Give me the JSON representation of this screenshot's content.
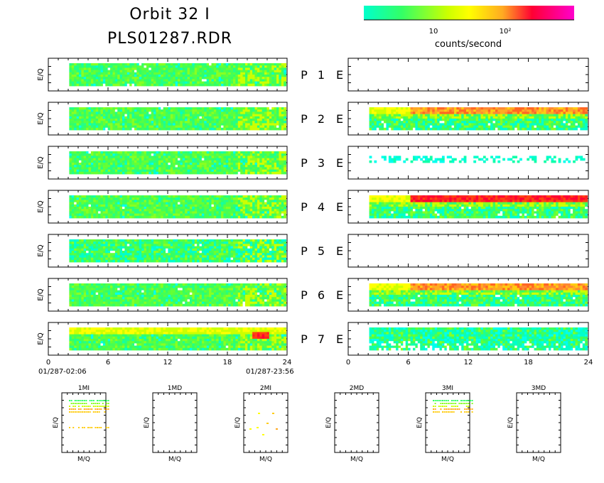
{
  "header": {
    "title_line1": "Orbit 32 I",
    "title_line2": "PLS01287.RDR"
  },
  "colorbar": {
    "unit_label": "counts/second",
    "tick_labels": [
      "10",
      "10²"
    ],
    "colors": [
      "#00ffcc",
      "#33ff66",
      "#ccff00",
      "#ffff00",
      "#ffaa22",
      "#ff0033",
      "#ff00cc"
    ]
  },
  "panel_labels": {
    "ylabel": "E/Q",
    "rows": [
      {
        "p": "P",
        "n": "1",
        "e": "E"
      },
      {
        "p": "P",
        "n": "2",
        "e": "E"
      },
      {
        "p": "P",
        "n": "3",
        "e": "E"
      },
      {
        "p": "P",
        "n": "4",
        "e": "E"
      },
      {
        "p": "P",
        "n": "5",
        "e": "E"
      },
      {
        "p": "P",
        "n": "6",
        "e": "E"
      },
      {
        "p": "P",
        "n": "7",
        "e": "E"
      }
    ]
  },
  "time_axis": {
    "ticks": [
      "0",
      "6",
      "12",
      "18",
      "24"
    ],
    "start_label": "01/287-02:06",
    "end_label": "01/287-23:56"
  },
  "small_panels": {
    "xlabel": "M/Q",
    "ylabel": "E/Q",
    "titles": [
      "1MI",
      "1MD",
      "2MI",
      "2MD",
      "3MI",
      "3MD"
    ]
  },
  "chart_data": {
    "type": "heatmap",
    "x_unit": "hours",
    "xlim": [
      0,
      24
    ],
    "left_column": [
      {
        "panel": "P1",
        "data_start_hour": 2.1,
        "data_end_hour": 23.9,
        "dominant_color": "#33ff66"
      },
      {
        "panel": "P2",
        "data_start_hour": 2.1,
        "data_end_hour": 23.9,
        "dominant_color": "#33ff66"
      },
      {
        "panel": "P3",
        "data_start_hour": 2.1,
        "data_end_hour": 23.9,
        "dominant_color": "#33ff66"
      },
      {
        "panel": "P4",
        "data_start_hour": 2.1,
        "data_end_hour": 23.9,
        "dominant_color": "#33ff66"
      },
      {
        "panel": "P5",
        "data_start_hour": 2.1,
        "data_end_hour": 23.9,
        "dominant_color": "#33ff66"
      },
      {
        "panel": "P6",
        "data_start_hour": 2.1,
        "data_end_hour": 23.9,
        "dominant_color": "#33ff66"
      },
      {
        "panel": "P7",
        "data_start_hour": 2.1,
        "data_end_hour": 23.9,
        "dominant_color": "#33ff66",
        "peak_color": "#ff0033",
        "peak_hour": 21.5
      }
    ],
    "right_column": [
      {
        "panel": "P1",
        "has_data": false
      },
      {
        "panel": "P2",
        "has_data": true,
        "data_start_hour": 2.1,
        "data_end_hour": 23.9,
        "band_color": "#ffaa22"
      },
      {
        "panel": "P3",
        "has_data": true,
        "sparse": true,
        "dominant_color": "#00ffcc"
      },
      {
        "panel": "P4",
        "has_data": true,
        "data_start_hour": 2.1,
        "data_end_hour": 23.9,
        "band_color": "#ff0033"
      },
      {
        "panel": "P5",
        "has_data": false
      },
      {
        "panel": "P6",
        "has_data": true,
        "data_start_hour": 2.1,
        "data_end_hour": 23.9,
        "band_color": "#ffaa22"
      },
      {
        "panel": "P7",
        "has_data": true,
        "data_start_hour": 2.1,
        "data_end_hour": 23.9,
        "dominant_color": "#00ffcc"
      }
    ],
    "mass_panels": [
      {
        "title": "1MI",
        "has_data": true
      },
      {
        "title": "1MD",
        "has_data": false
      },
      {
        "title": "2MI",
        "has_data": true,
        "sparse": true
      },
      {
        "title": "2MD",
        "has_data": false
      },
      {
        "title": "3MI",
        "has_data": true
      },
      {
        "title": "3MD",
        "has_data": false
      }
    ]
  }
}
